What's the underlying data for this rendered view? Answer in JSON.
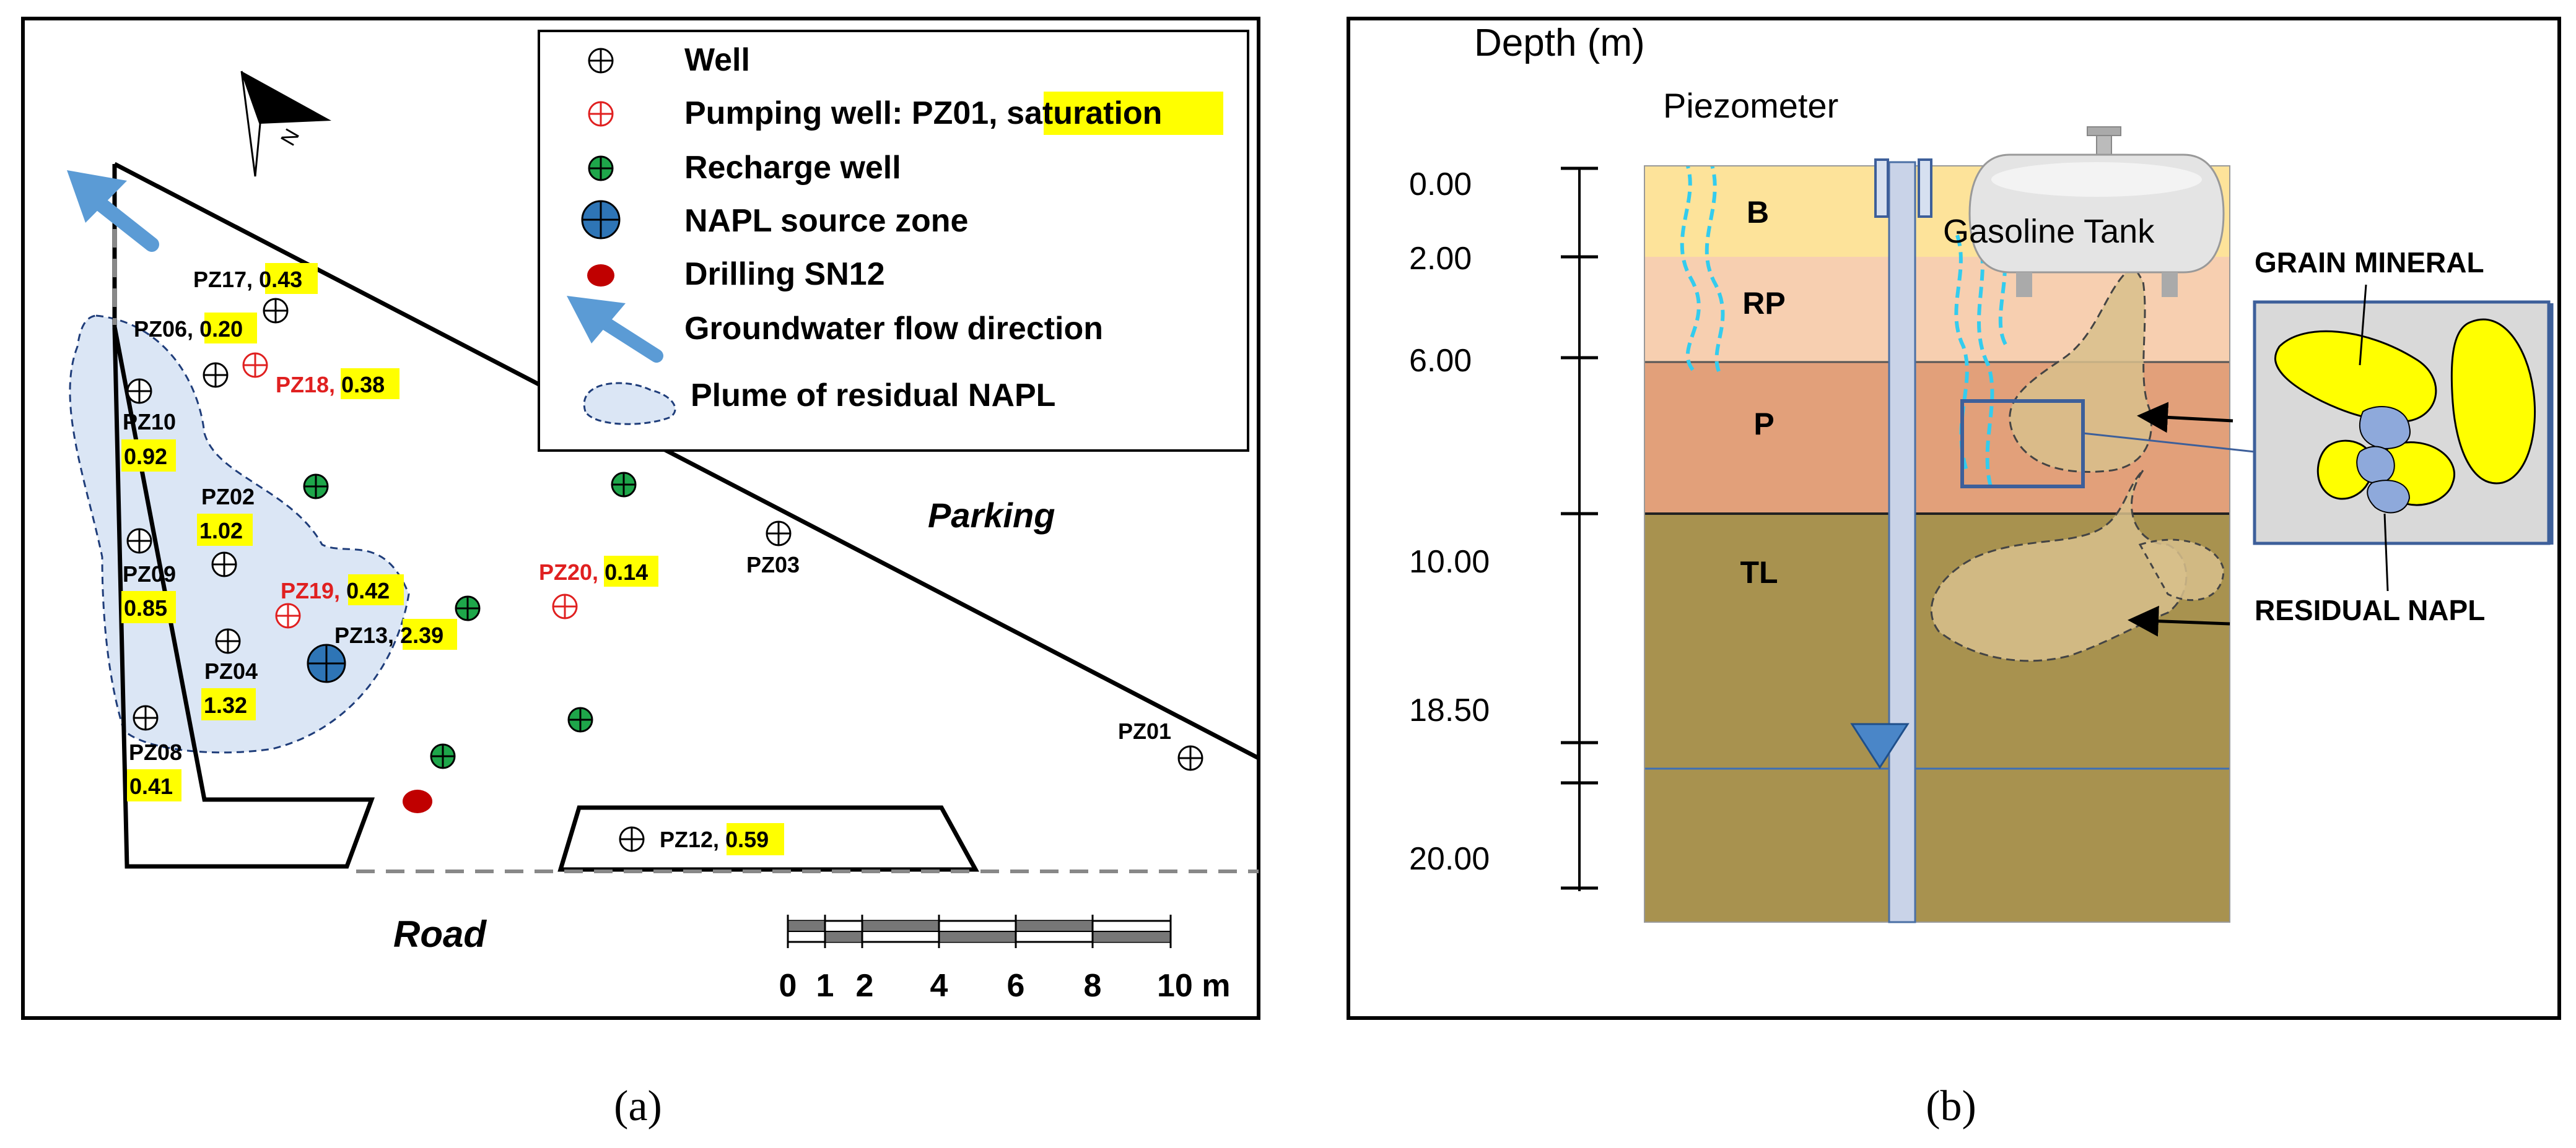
{
  "panel_a": {
    "caption": "(a)",
    "north_label": "N",
    "legend": {
      "well": "Well",
      "pumping_prefix": "Pumping well: PZ01, ",
      "pumping_highlight": "saturation",
      "recharge": "Recharge well",
      "source": "NAPL source zone",
      "drilling": "Drilling SN12",
      "flow": "Groundwater flow direction",
      "plume": "Plume of residual NAPL"
    },
    "parking": "Parking",
    "road": "Road",
    "scale_ticks": [
      "0",
      "1",
      "2",
      "4",
      "6",
      "8",
      "10 m"
    ],
    "wells": [
      {
        "id": "PZ17",
        "sep": ",",
        "value": "0.43",
        "pumping": false
      },
      {
        "id": "PZ06",
        "sep": ",",
        "value": "0.20",
        "pumping": false
      },
      {
        "id": "PZ18",
        "sep": ",",
        "value": "0.38",
        "pumping": true
      },
      {
        "id": "PZ10",
        "sep": "",
        "value": "0.92",
        "pumping": false
      },
      {
        "id": "PZ02",
        "sep": "",
        "value": "1.02",
        "pumping": false
      },
      {
        "id": "PZ09",
        "sep": "",
        "value": "0.85",
        "pumping": false
      },
      {
        "id": "PZ19",
        "sep": ",",
        "value": "0.42",
        "pumping": true
      },
      {
        "id": "PZ13",
        "sep": ",",
        "value": "2.39",
        "pumping": false
      },
      {
        "id": "PZ04",
        "sep": "",
        "value": "1.32",
        "pumping": false
      },
      {
        "id": "PZ08",
        "sep": "",
        "value": "0.41",
        "pumping": false
      },
      {
        "id": "PZ20",
        "sep": ",",
        "value": "0.14",
        "pumping": true
      },
      {
        "id": "PZ03",
        "sep": "",
        "value": "",
        "pumping": false
      },
      {
        "id": "PZ01",
        "sep": "",
        "value": "",
        "pumping": false
      },
      {
        "id": "PZ12",
        "sep": ",",
        "value": "0.59",
        "pumping": false
      }
    ]
  },
  "panel_b": {
    "caption": "(b)",
    "depth_title": "Depth (m)",
    "piezometer": "Piezometer",
    "tank": "Gasoline Tank",
    "depths": [
      "0.00",
      "2.00",
      "6.00",
      "10.00",
      "18.50",
      "20.00"
    ],
    "layers": [
      {
        "code": "B",
        "color": "#fde39a"
      },
      {
        "code": "RP",
        "color": "#f7cfb0"
      },
      {
        "code": "P",
        "color": "#e2a07a"
      },
      {
        "code": "TL",
        "color": "#a8924f"
      }
    ],
    "grain_mineral": "GRAIN MINERAL",
    "residual_napl": "RESIDUAL NAPL"
  },
  "colors": {
    "plume": "#dbe6f5",
    "flow_arrow": "#5b9bd5",
    "recharge": "#1ea64a",
    "source": "#2e75b6",
    "drilling": "#c00000",
    "pumping": "#e02020",
    "water": "#4a86c8"
  }
}
